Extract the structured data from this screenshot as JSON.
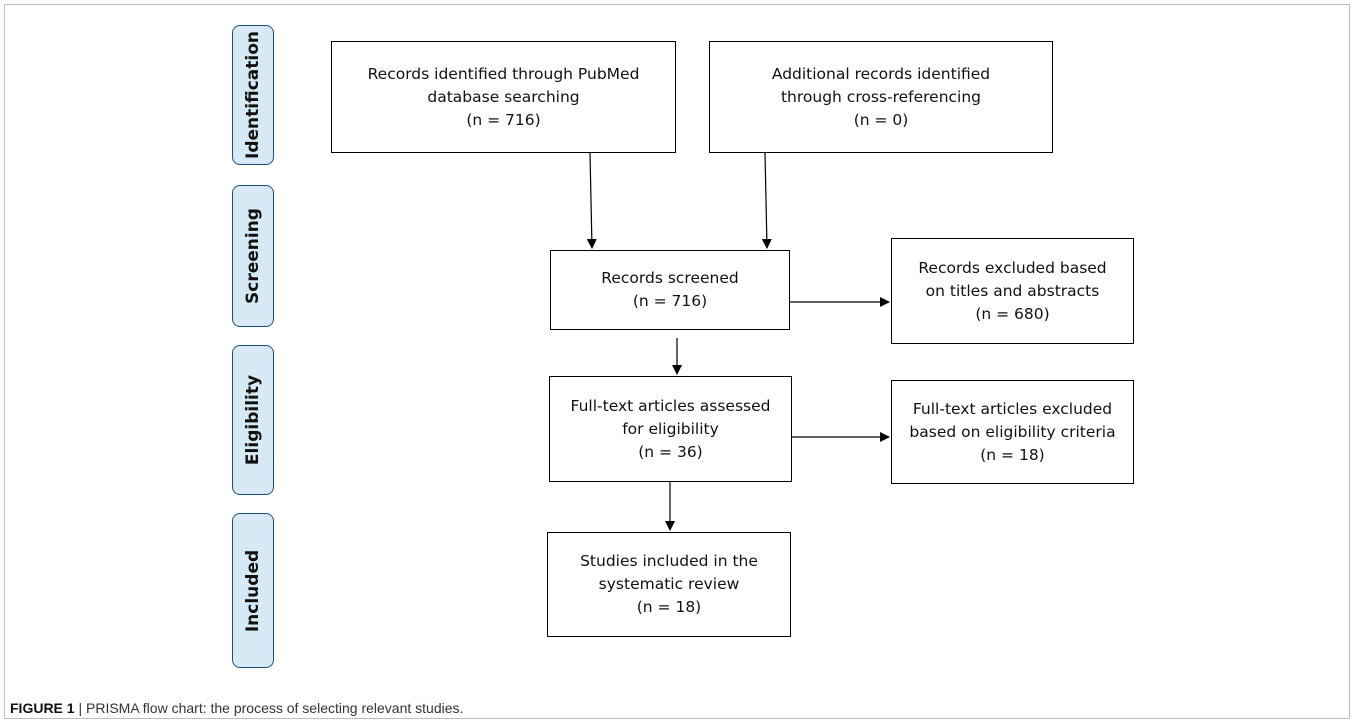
{
  "stages": {
    "identification": "Identification",
    "screening": "Screening",
    "eligibility": "Eligibility",
    "included": "Included"
  },
  "boxes": {
    "pubmed": {
      "line1": "Records identified through PubMed",
      "line2": "database searching",
      "count": "(n = 716)"
    },
    "additional": {
      "line1": "Additional records identified",
      "line2": "through cross-referencing",
      "count": "(n = 0)"
    },
    "screened": {
      "line1": "Records screened",
      "count": "(n = 716)"
    },
    "excluded_titles": {
      "line1": "Records excluded based",
      "line2": "on titles and abstracts",
      "count": "(n = 680)"
    },
    "fulltext": {
      "line1": "Full-text articles assessed",
      "line2": "for eligibility",
      "count": "(n = 36)"
    },
    "fulltext_excluded": {
      "line1": "Full-text articles excluded",
      "line2": "based on eligibility criteria",
      "count": "(n = 18)"
    },
    "included": {
      "line1": "Studies included in the",
      "line2": "systematic review",
      "count": "(n = 18)"
    }
  },
  "caption": {
    "label": "FIGURE 1",
    "separator": " | ",
    "text": "PRISMA flow chart: the process of selecting relevant studies."
  },
  "colors": {
    "stage_fill": "#d6e9f5",
    "stage_border": "#1f4d78",
    "box_border": "#000000"
  }
}
